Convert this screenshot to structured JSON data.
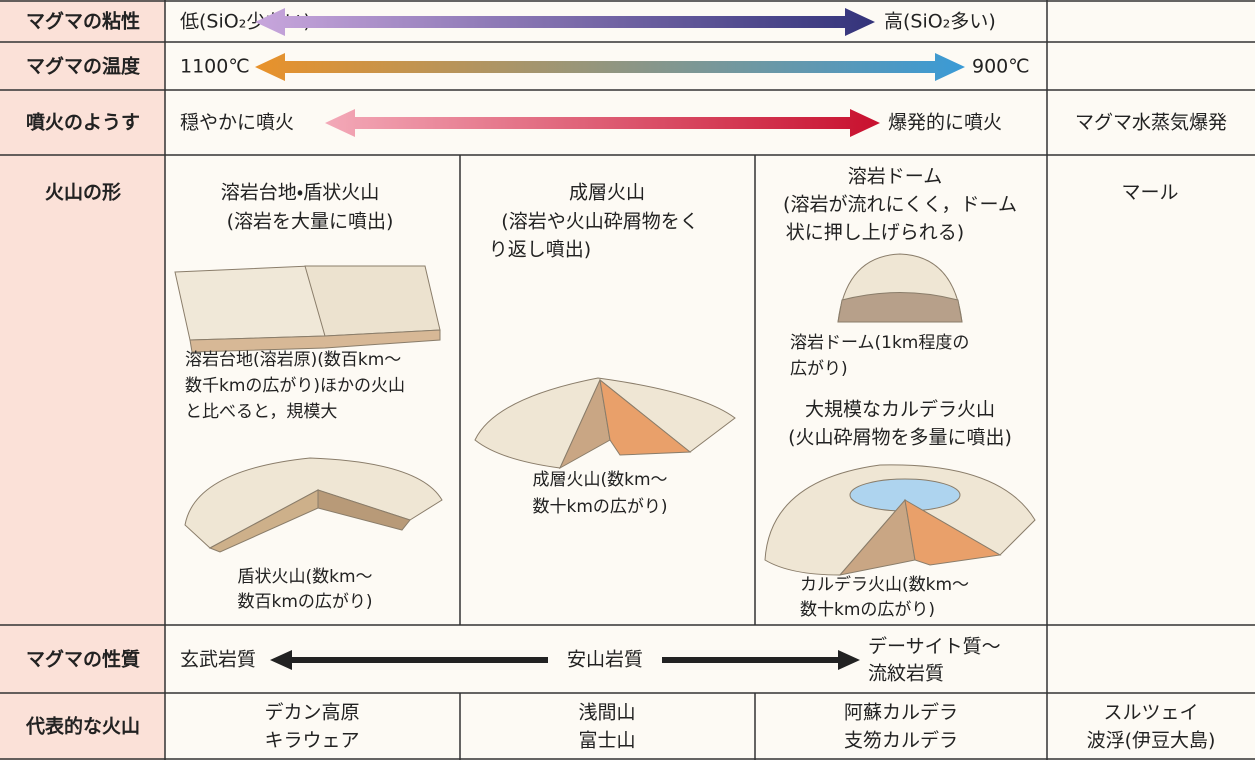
{
  "rows": [
    {
      "label": "マグマの粘性",
      "left": "低(SiO₂少ない)",
      "right": "高(SiO₂多い)"
    },
    {
      "label": "マグマの温度",
      "left": "1100℃",
      "right": "900℃"
    },
    {
      "label": "噴火のようす",
      "left": "穏やかに噴火",
      "right": "爆発的に噴火",
      "extra": "マグマ水蒸気爆発"
    },
    {
      "label": "火山の形",
      "cells": [
        {
          "title": [
            "溶岩台地・盾状火山",
            "(溶岩を大量に噴出)"
          ],
          "captions": [
            [
              "溶岩台地(溶岩原)(数百km～",
              "数千kmの広がり)ほかの火山",
              "と比べると，規模大"
            ],
            [
              "盾状火山(数km～",
              "数百kmの広がり)"
            ]
          ]
        },
        {
          "title": [
            "成層火山",
            "(溶岩や火山砕屑物をく",
            "り返し噴出)"
          ],
          "captions": [
            [
              "成層火山(数km～",
              "数十kmの広がり)"
            ]
          ]
        },
        {
          "title": [
            "溶岩ドーム",
            "(溶岩が流れにくく，ドーム",
            "状に押し上げられる)"
          ],
          "captions": [
            [
              "溶岩ドーム(1km程度の",
              "広がり)"
            ],
            [
              "カルデラ火山(数km～",
              "数十kmの広がり)"
            ]
          ],
          "subtitle": [
            "大規模なカルデラ火山",
            "(火山砕屑物を多量に噴出)"
          ]
        },
        {
          "title": [
            "マール"
          ]
        }
      ]
    },
    {
      "label": "マグマの性質",
      "left": "玄武岩質",
      "middle": "安山岩質",
      "right": [
        "デーサイト質～",
        "流紋岩質"
      ]
    },
    {
      "label": "代表的な火山",
      "cells": [
        [
          "デカン高原",
          "キラウェア"
        ],
        [
          "浅間山",
          "富士山"
        ],
        [
          "阿蘇カルデラ",
          "支笏カルデラ"
        ],
        [
          "スルツェイ",
          "波浮(伊豆大島)"
        ]
      ]
    }
  ]
}
